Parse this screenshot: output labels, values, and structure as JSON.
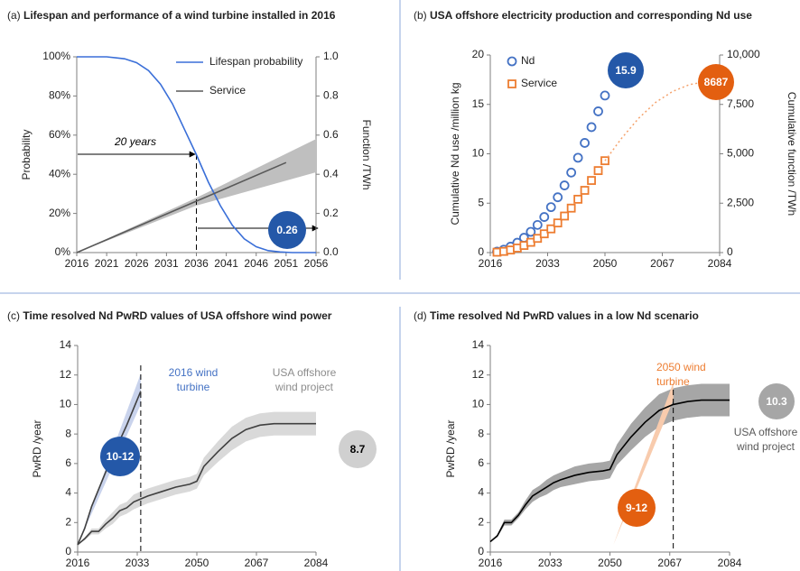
{
  "chart_data": [
    {
      "type": "line",
      "panel": "(a)",
      "title": "Lifespan and performance of a wind turbine installed in 2016",
      "ylabel": "Probability",
      "y2label": "Function /TWh",
      "xlim": [
        2016,
        2056
      ],
      "xticks": [
        2016,
        2021,
        2026,
        2031,
        2036,
        2041,
        2046,
        2051,
        2056
      ],
      "ylim": [
        0,
        100
      ],
      "yticks": [
        {
          "value": 0,
          "label": "0%"
        },
        {
          "value": 20,
          "label": "20%"
        },
        {
          "value": 40,
          "label": "40%"
        },
        {
          "value": 60,
          "label": "60%"
        },
        {
          "value": 80,
          "label": "80%"
        },
        {
          "value": 100,
          "label": "100%"
        }
      ],
      "y2lim": [
        0,
        1
      ],
      "y2ticks": [
        {
          "value": 0,
          "label": "0.0"
        },
        0.2,
        0.4,
        0.6,
        0.8,
        {
          "value": 1,
          "label": "1.0"
        }
      ],
      "legend": true,
      "bands": [
        {
          "color": "#bfbfbf",
          "axis": "y2",
          "x": [
            2016,
            2036,
            2056
          ],
          "lower": [
            0,
            0.24,
            0.41
          ],
          "upper": [
            0,
            0.28,
            0.58
          ]
        }
      ],
      "series": [
        {
          "name": "Lifespan probability",
          "color": "#3a6fd8",
          "style": "line",
          "x": [
            2016,
            2021,
            2024,
            2026,
            2028,
            2030,
            2032,
            2034,
            2036,
            2038,
            2040,
            2042,
            2044,
            2046,
            2048,
            2050,
            2052,
            2056
          ],
          "values": [
            100,
            100,
            99,
            97,
            93,
            86,
            76,
            63,
            50,
            36,
            24,
            14,
            7,
            3,
            1,
            0.3,
            0,
            0
          ]
        },
        {
          "name": "Service",
          "color": "#595959",
          "style": "line",
          "axis": "y2",
          "x": [
            2016,
            2051
          ],
          "values": [
            0,
            0.46
          ]
        }
      ],
      "vlines": [
        2036
      ],
      "annotations": [
        {
          "lines": [
            "20 years"
          ],
          "color": "#000000",
          "italic": true
        }
      ],
      "bubbles": [
        {
          "label": "0.26",
          "color": "#2458a8",
          "text_color": "#ffffff"
        }
      ]
    },
    {
      "type": "line",
      "panel": "(b)",
      "title": "USA offshore electricity production and corresponding Nd use",
      "ylabel": "Cumulative Nd use /million kg",
      "y2label": "Cumulative function /TWh",
      "xlim": [
        2016,
        2084
      ],
      "xticks": [
        2016,
        2033,
        2050,
        2067,
        2084
      ],
      "ylim": [
        0,
        20
      ],
      "yticks": [
        0,
        5,
        10,
        15,
        20
      ],
      "y2lim": [
        0,
        10000
      ],
      "y2ticks": [
        0,
        {
          "value": 2500,
          "label": "2,500"
        },
        {
          "value": 5000,
          "label": "5,000"
        },
        {
          "value": 7500,
          "label": "7,500"
        },
        {
          "value": 10000,
          "label": "10,000"
        }
      ],
      "legend": true,
      "series": [
        {
          "name": "Nd",
          "color": "#4472c4",
          "style": "circle",
          "x": [
            2018,
            2020,
            2022,
            2024,
            2026,
            2028,
            2030,
            2032,
            2034,
            2036,
            2038,
            2040,
            2042,
            2044,
            2046,
            2048,
            2050
          ],
          "values": [
            0.1,
            0.3,
            0.6,
            1.0,
            1.5,
            2.1,
            2.8,
            3.6,
            4.6,
            5.6,
            6.8,
            8.1,
            9.6,
            11.1,
            12.7,
            14.3,
            15.9
          ]
        },
        {
          "name": "Service",
          "color": "#ed7d31",
          "style": "square",
          "axis": "y2",
          "x": [
            2018,
            2020,
            2022,
            2024,
            2026,
            2028,
            2030,
            2032,
            2034,
            2036,
            2038,
            2040,
            2042,
            2044,
            2046,
            2048,
            2050
          ],
          "values": [
            20,
            60,
            130,
            230,
            360,
            520,
            720,
            950,
            1200,
            1500,
            1850,
            2250,
            2700,
            3150,
            3650,
            4150,
            4650
          ]
        },
        {
          "color": "#f5a26c",
          "style": "dotted",
          "axis": "y2",
          "x": [
            2050,
            2055,
            2060,
            2065,
            2070,
            2075,
            2080,
            2084
          ],
          "values": [
            4650,
            5800,
            6800,
            7600,
            8150,
            8500,
            8650,
            8687
          ]
        }
      ],
      "bubbles": [
        {
          "label": "15.9",
          "color": "#2458a8",
          "text_color": "#ffffff"
        },
        {
          "label": "8687",
          "color": "#e35f10",
          "text_color": "#ffffff"
        }
      ]
    },
    {
      "type": "line",
      "panel": "(c)",
      "title": "Time resolved Nd PwRD values of USA offshore wind power",
      "ylabel": "PwRD /year",
      "xlim": [
        2016,
        2084
      ],
      "xticks": [
        2016,
        2033,
        2050,
        2067,
        2084
      ],
      "ylim": [
        0,
        14
      ],
      "yticks": [
        0,
        2,
        4,
        6,
        8,
        10,
        12,
        14
      ],
      "bands": [
        {
          "color": "#d9d9d9",
          "x": [
            2016,
            2018,
            2020,
            2022,
            2024,
            2026,
            2028,
            2030,
            2032,
            2034,
            2036,
            2040,
            2044,
            2048,
            2050,
            2052,
            2056,
            2060,
            2064,
            2068,
            2072,
            2076,
            2084
          ],
          "lower": [
            0.5,
            0.8,
            1.2,
            1.2,
            1.6,
            1.9,
            2.4,
            2.6,
            2.9,
            3.1,
            3.3,
            3.6,
            3.9,
            4.1,
            4.3,
            5.2,
            6.1,
            6.9,
            7.5,
            7.8,
            7.9,
            7.9,
            7.9
          ],
          "upper": [
            0.5,
            1.0,
            1.6,
            1.6,
            2.2,
            2.7,
            3.2,
            3.4,
            3.9,
            4.1,
            4.3,
            4.6,
            4.9,
            5.1,
            5.3,
            6.4,
            7.5,
            8.5,
            9.1,
            9.4,
            9.5,
            9.5,
            9.5
          ]
        },
        {
          "color": "#c9d3ec",
          "x": [
            2016,
            2034
          ],
          "lower": [
            0.5,
            10.0
          ],
          "upper": [
            0.5,
            12.1
          ]
        }
      ],
      "series": [
        {
          "color": "#404040",
          "style": "line",
          "x": [
            2016,
            2018,
            2020,
            2022,
            2024,
            2026,
            2028,
            2030,
            2032,
            2034,
            2036,
            2040,
            2044,
            2048,
            2050,
            2052,
            2056,
            2060,
            2064,
            2068,
            2072,
            2076,
            2084
          ],
          "values": [
            0.5,
            0.9,
            1.4,
            1.4,
            1.9,
            2.3,
            2.8,
            3.0,
            3.4,
            3.6,
            3.8,
            4.1,
            4.4,
            4.6,
            4.8,
            5.8,
            6.8,
            7.7,
            8.3,
            8.6,
            8.7,
            8.7,
            8.7
          ]
        },
        {
          "color": "#404040",
          "style": "line",
          "x": [
            2016,
            2018,
            2020,
            2025,
            2030,
            2034
          ],
          "values": [
            0.5,
            1.6,
            3.1,
            6.0,
            8.6,
            10.9
          ]
        }
      ],
      "vlines": [
        2034
      ],
      "annotations": [
        {
          "lines": [
            "2016 wind",
            "turbine"
          ],
          "color": "#4472c4"
        },
        {
          "lines": [
            "USA offshore",
            "wind project"
          ],
          "color": "#8c8c8c"
        }
      ],
      "bubbles": [
        {
          "label": "10-12",
          "color": "#2458a8",
          "text_color": "#ffffff"
        },
        {
          "label": "8.7",
          "color": "#d0d0d0",
          "text_color": "#000000"
        }
      ]
    },
    {
      "type": "line",
      "panel": "(d)",
      "title": "Time resolved Nd PwRD values in a low Nd scenario",
      "ylabel": "PwRD /year",
      "xlim": [
        2016,
        2084
      ],
      "xticks": [
        2016,
        2033,
        2050,
        2067,
        2084
      ],
      "ylim": [
        0,
        14
      ],
      "yticks": [
        0,
        2,
        4,
        6,
        8,
        10,
        12,
        14
      ],
      "bands": [
        {
          "color": "#a6a6a6",
          "x": [
            2016,
            2018,
            2020,
            2022,
            2024,
            2026,
            2028,
            2030,
            2032,
            2034,
            2036,
            2040,
            2044,
            2048,
            2050,
            2052,
            2056,
            2060,
            2064,
            2068,
            2072,
            2076,
            2084
          ],
          "lower": [
            0.7,
            1.0,
            1.8,
            1.8,
            2.3,
            2.9,
            3.4,
            3.7,
            3.9,
            4.2,
            4.4,
            4.6,
            4.8,
            4.9,
            5.0,
            5.9,
            6.9,
            7.8,
            8.5,
            8.9,
            9.1,
            9.2,
            9.2
          ],
          "upper": [
            0.7,
            1.2,
            2.2,
            2.2,
            2.7,
            3.5,
            4.2,
            4.5,
            4.9,
            5.2,
            5.4,
            5.8,
            6.0,
            6.1,
            6.2,
            7.3,
            8.7,
            9.8,
            10.7,
            11.1,
            11.3,
            11.4,
            11.4
          ]
        },
        {
          "color": "#f8cbad",
          "x": [
            2051,
            2068
          ],
          "lower": [
            0.5,
            10.3
          ],
          "upper": [
            0.5,
            11.5
          ]
        }
      ],
      "series": [
        {
          "color": "#000000",
          "style": "line",
          "x": [
            2016,
            2018,
            2020,
            2022,
            2024,
            2026,
            2028,
            2030,
            2032,
            2034,
            2036,
            2040,
            2044,
            2048,
            2050,
            2052,
            2056,
            2060,
            2064,
            2068,
            2072,
            2076,
            2084
          ],
          "values": [
            0.7,
            1.1,
            2.0,
            2.0,
            2.5,
            3.2,
            3.8,
            4.1,
            4.4,
            4.7,
            4.9,
            5.2,
            5.4,
            5.5,
            5.6,
            6.6,
            7.8,
            8.8,
            9.6,
            10.0,
            10.2,
            10.3,
            10.3
          ]
        }
      ],
      "vlines": [
        2068
      ],
      "annotations": [
        {
          "lines": [
            "2050 wind",
            "turbine"
          ],
          "color": "#ed7d31"
        },
        {
          "lines": [
            "USA offshore",
            "wind project"
          ],
          "color": "#595959"
        }
      ],
      "bubbles": [
        {
          "label": "9-12",
          "color": "#e35f10",
          "text_color": "#ffffff"
        },
        {
          "label": "10.3",
          "color": "#a6a6a6",
          "text_color": "#ffffff"
        }
      ]
    }
  ]
}
